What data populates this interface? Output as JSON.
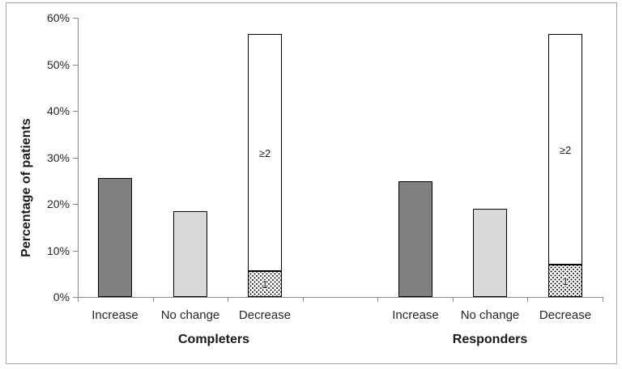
{
  "chart_data": {
    "type": "bar",
    "subtype": "grouped columns; Decrease column is stacked with two labeled segments",
    "title": "",
    "ylabel": "Percentage of patients",
    "ylim": [
      0,
      60
    ],
    "yticks": [
      0,
      10,
      20,
      30,
      40,
      50,
      60
    ],
    "ytick_labels": [
      "0%",
      "10%",
      "20%",
      "30%",
      "40%",
      "50%",
      "60%"
    ],
    "grid": false,
    "legend_position": "none",
    "groups": [
      {
        "label": "Completers",
        "bars": [
          {
            "category": "Increase",
            "segments": [
              {
                "value": 25.5,
                "fill": "dark-gray",
                "label": ""
              }
            ]
          },
          {
            "category": "No change",
            "segments": [
              {
                "value": 18.4,
                "fill": "light-gray",
                "label": ""
              }
            ]
          },
          {
            "category": "Decrease",
            "segments": [
              {
                "value": 5.5,
                "fill": "dotted",
                "label": "1"
              },
              {
                "value": 51.0,
                "fill": "white",
                "label": "≥2"
              }
            ]
          }
        ]
      },
      {
        "label": "Responders",
        "bars": [
          {
            "category": "Increase",
            "segments": [
              {
                "value": 24.8,
                "fill": "dark-gray",
                "label": ""
              }
            ]
          },
          {
            "category": "No change",
            "segments": [
              {
                "value": 18.9,
                "fill": "light-gray",
                "label": ""
              }
            ]
          },
          {
            "category": "Decrease",
            "segments": [
              {
                "value": 7.0,
                "fill": "dotted",
                "label": "1"
              },
              {
                "value": 49.6,
                "fill": "white",
                "label": "≥2"
              }
            ]
          }
        ]
      }
    ],
    "colors": {
      "dark-gray": "#808080",
      "light-gray": "#d9d9d9",
      "white": "#ffffff",
      "bar_border": "#000000",
      "axis": "#898989",
      "frame_border": "#a6a6a6",
      "text": "#262626"
    }
  }
}
